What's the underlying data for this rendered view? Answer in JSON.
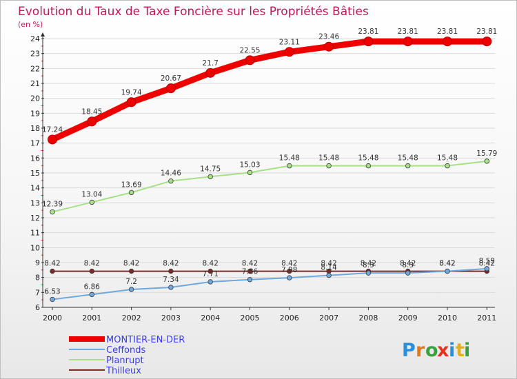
{
  "chart_data": {
    "type": "line",
    "title": "Evolution du Taux de Taxe Foncière sur les Propriétés Bâties",
    "subtitle": "(en %)",
    "xlabel": "",
    "ylabel": "",
    "ylim": [
      6,
      24
    ],
    "yticks": [
      "6",
      "7",
      "8",
      "9",
      "10",
      "11",
      "12",
      "13",
      "14",
      "15",
      "16",
      "17",
      "18",
      "19",
      "20",
      "21",
      "22",
      "23",
      "24"
    ],
    "x": [
      "2000",
      "2001",
      "2002",
      "2003",
      "2004",
      "2005",
      "2006",
      "2007",
      "2008",
      "2009",
      "2010",
      "2011"
    ],
    "series": [
      {
        "name": "MONTIER-EN-DER",
        "color": "#ee0000",
        "values": [
          17.24,
          18.45,
          19.74,
          20.67,
          21.7,
          22.55,
          23.11,
          23.46,
          23.81,
          23.81,
          23.81,
          23.81
        ],
        "labels": [
          "17.24",
          "18.45",
          "19.74",
          "20.67",
          "21.7",
          "22.55",
          "23.11",
          "23.46",
          "23.81",
          "23.81",
          "23.81",
          "23.81"
        ]
      },
      {
        "name": "Ceffonds",
        "color": "#6fa8dc",
        "values": [
          6.53,
          6.86,
          7.2,
          7.34,
          7.71,
          7.86,
          7.98,
          8.14,
          8.3,
          8.3,
          8.42,
          8.59
        ],
        "labels": [
          "6.53",
          "6.86",
          "7.2",
          "7.34",
          "7.71",
          "7.86",
          "7.98",
          "8.14",
          "8.3",
          "8.3",
          "8.42",
          "8.59"
        ]
      },
      {
        "name": "Planrupt",
        "color": "#a8e088",
        "values": [
          12.39,
          13.04,
          13.69,
          14.46,
          14.75,
          15.03,
          15.48,
          15.48,
          15.48,
          15.48,
          15.48,
          15.79
        ],
        "labels": [
          "12.39",
          "13.04",
          "13.69",
          "14.46",
          "14.75",
          "15.03",
          "15.48",
          "15.48",
          "15.48",
          "15.48",
          "15.48",
          "15.79"
        ]
      },
      {
        "name": "Thilleux",
        "color": "#7a2a2a",
        "values": [
          8.42,
          8.42,
          8.42,
          8.42,
          8.42,
          8.42,
          8.42,
          8.42,
          8.42,
          8.42,
          8.42,
          8.42
        ],
        "labels": [
          "8.42",
          "8.42",
          "8.42",
          "8.42",
          "8.42",
          "8.42",
          "8.42",
          "8.42",
          "8.42",
          "8.42",
          "8.42",
          "8.42"
        ]
      }
    ],
    "legend_position": "bottom-left"
  },
  "logo": {
    "letters": [
      "P",
      "r",
      "o",
      "x",
      "i",
      "t",
      "i"
    ],
    "colors": [
      "#2a8fd8",
      "#e07820",
      "#3aa040",
      "#e83020",
      "#2a8fd8",
      "#e0b020",
      "#3aa040"
    ]
  }
}
